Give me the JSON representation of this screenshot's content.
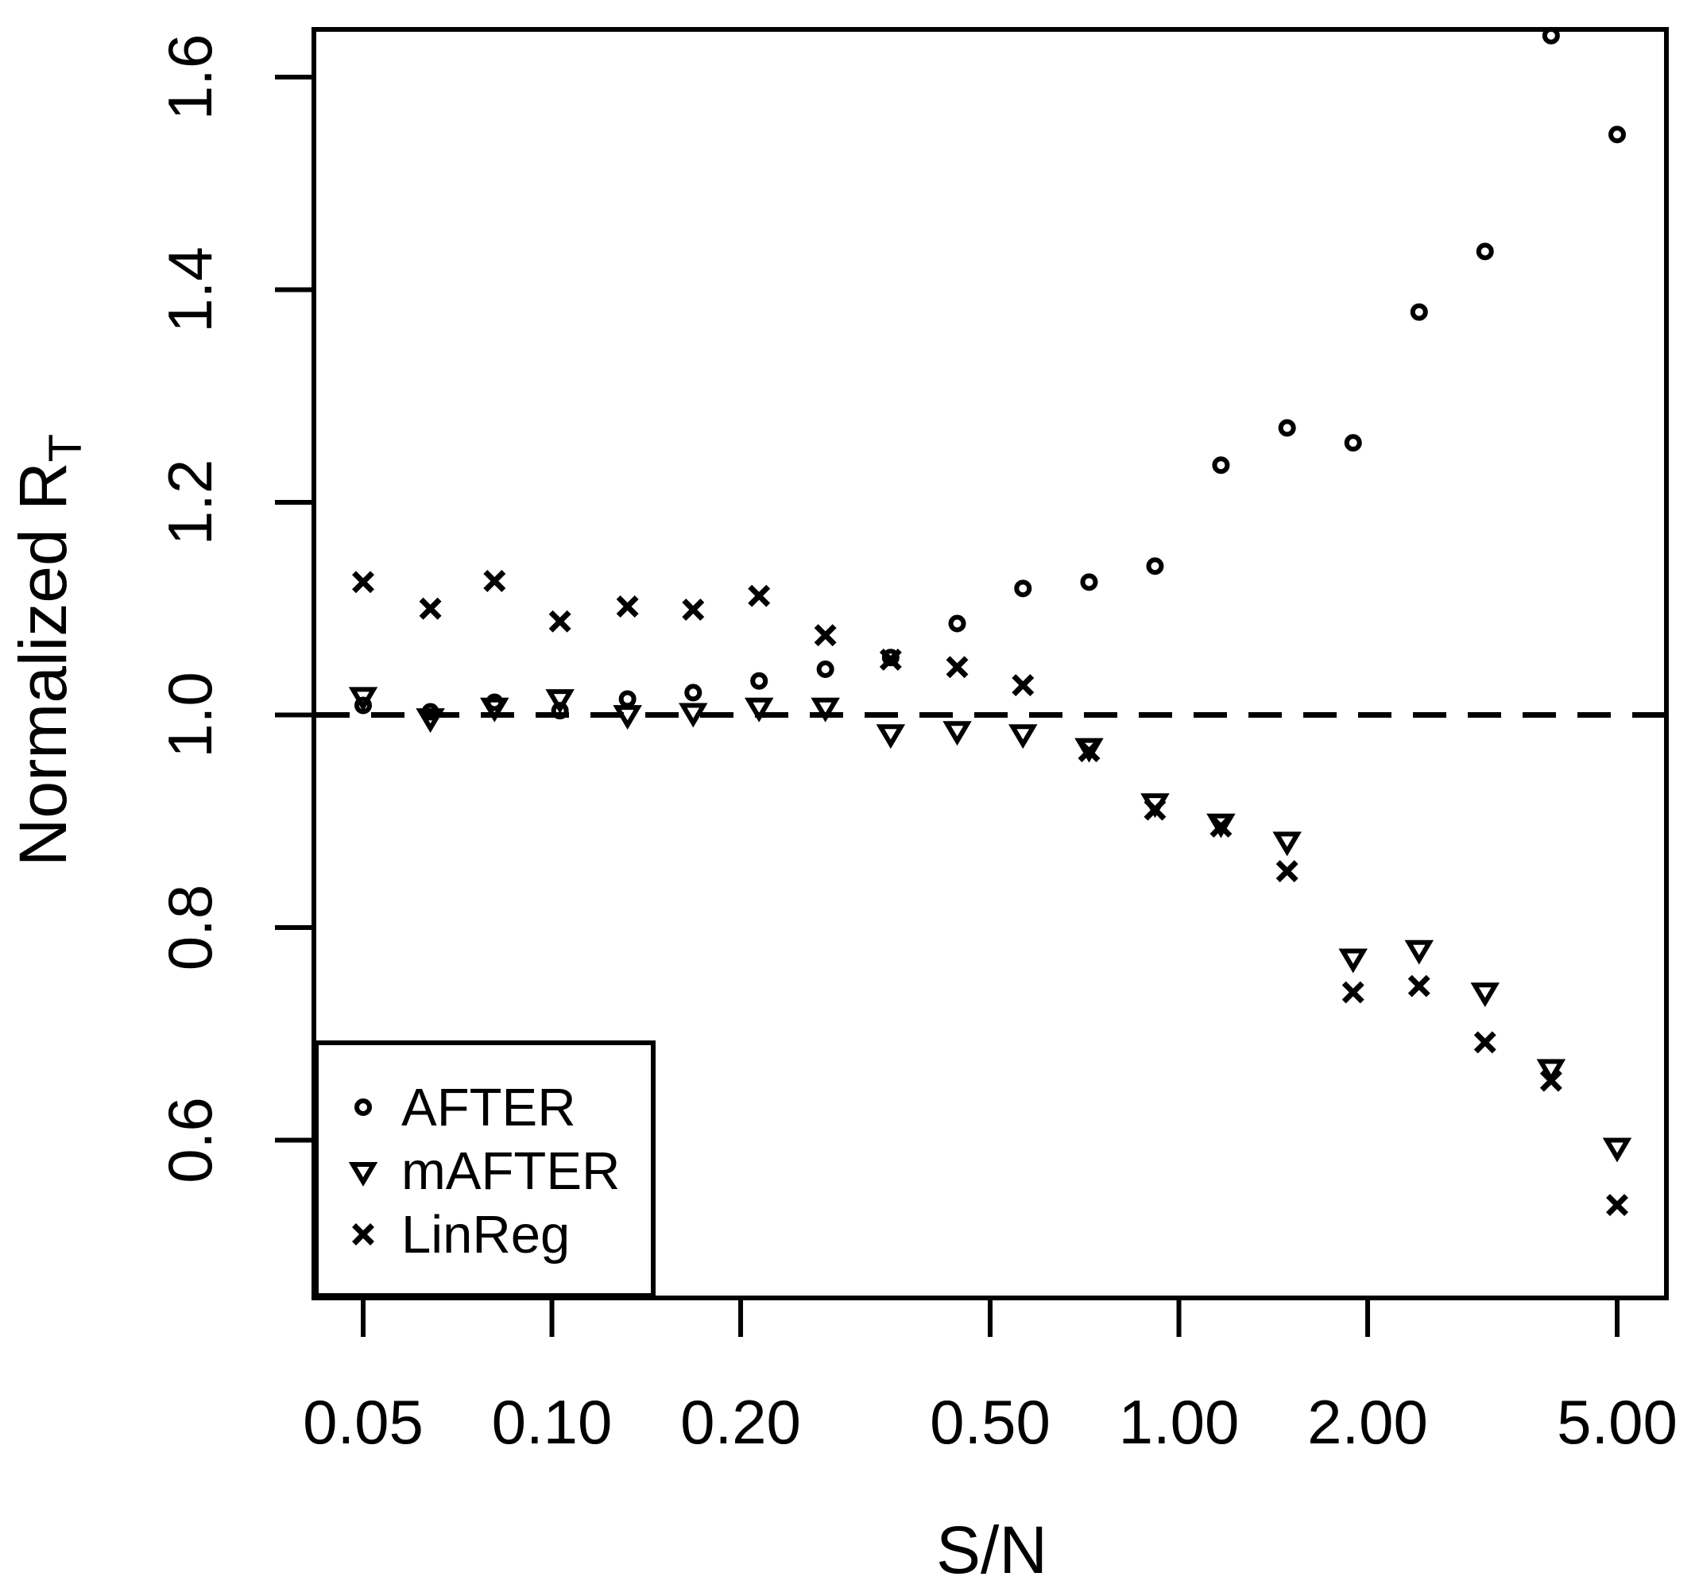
{
  "chart_data": {
    "type": "scatter",
    "title": "",
    "xlabel": "S/N",
    "ylabel_main": "Normalized R",
    "ylabel_sub": "T",
    "x_scale": "log",
    "y_scale": "linear",
    "xlim": [
      0.042,
      5.99
    ],
    "ylim": [
      0.452,
      1.645
    ],
    "x_tick_values": [
      0.05,
      0.1,
      0.2,
      0.5,
      1.0,
      2.0,
      5.0
    ],
    "x_tick_labels": [
      "0.05",
      "0.10",
      "0.20",
      "0.50",
      "1.00",
      "2.00",
      "5.00"
    ],
    "y_tick_values": [
      0.6,
      0.8,
      1.0,
      1.2,
      1.4,
      1.6
    ],
    "y_tick_labels": [
      "0.6",
      "0.8",
      "1.0",
      "1.2",
      "1.4",
      "1.6"
    ],
    "reference_line_y": 1.0,
    "grid": false,
    "legend_position": "bottom-left",
    "x": [
      0.05,
      0.064,
      0.081,
      0.103,
      0.132,
      0.168,
      0.214,
      0.273,
      0.347,
      0.443,
      0.564,
      0.719,
      0.916,
      1.167,
      1.488,
      1.896,
      2.416,
      3.078,
      3.923,
      5.0
    ],
    "series": [
      {
        "name": "AFTER",
        "marker": "circle",
        "values": [
          1.009,
          1.003,
          1.012,
          1.004,
          1.015,
          1.021,
          1.032,
          1.043,
          1.054,
          1.086,
          1.119,
          1.125,
          1.14,
          1.235,
          1.27,
          1.256,
          1.379,
          1.436,
          1.639,
          1.546
        ]
      },
      {
        "name": "mAFTER",
        "marker": "triangle-down",
        "values": [
          1.018,
          0.998,
          1.008,
          1.016,
          1.001,
          1.003,
          1.008,
          1.008,
          0.983,
          0.986,
          0.983,
          0.97,
          0.918,
          0.899,
          0.882,
          0.772,
          0.78,
          0.74,
          0.668,
          0.594
        ]
      },
      {
        "name": "LinReg",
        "marker": "x",
        "values": [
          1.125,
          1.1,
          1.126,
          1.088,
          1.102,
          1.099,
          1.112,
          1.075,
          1.052,
          1.045,
          1.028,
          0.966,
          0.911,
          0.895,
          0.853,
          0.739,
          0.745,
          0.692,
          0.656,
          0.539
        ]
      }
    ],
    "marker_color": "#000000",
    "background_color": "#ffffff"
  }
}
